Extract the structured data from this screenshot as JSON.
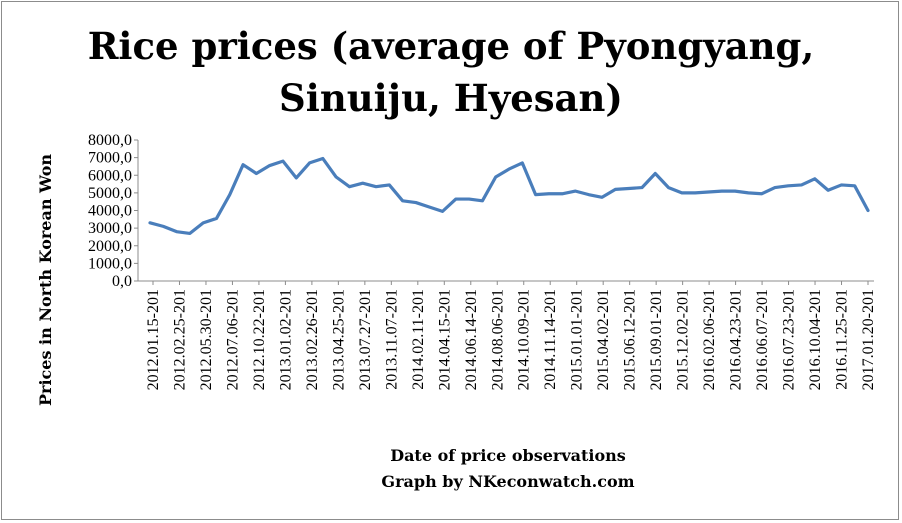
{
  "chart_data": {
    "type": "line",
    "title_line1": "Rice prices (average of Pyongyang,",
    "title_line2": "Sinuiju, Hyesan)",
    "ylabel": "Prices in North Korean Won",
    "xlabel": "Date of price observations",
    "credit": "Graph by NKeconwatch.com",
    "ylim": [
      0,
      8000
    ],
    "y_ticks": [
      "0,0",
      "1000,0",
      "2000,0",
      "3000,0",
      "4000,0",
      "5000,0",
      "6000,0",
      "7000,0",
      "8000,0"
    ],
    "x_tick_labels": [
      "2012.01.15-201",
      "2012.02.25-201",
      "2012.05.30-201",
      "2012.07.06-201",
      "2012.10.22-201",
      "2013.01.02-201",
      "2013.02.26-201",
      "2013.04.25-201",
      "2013.07.27-201",
      "2013.11.07-201",
      "2014.02.11-201",
      "2014.04.15-201",
      "2014.06.14-201",
      "2014.08.06-201",
      "2014.10.09-201",
      "2014.11.14-201",
      "2015.01.01-201",
      "2015.04.02-201",
      "2015.06.12-201",
      "2015.09.01-201",
      "2015.12.02-201",
      "2016.02.06-201",
      "2016.04.23-201",
      "2016.06.07-201",
      "2016.07.23-201",
      "2016.10.04-201",
      "2016.11.25-201",
      "2017.01.20-201"
    ],
    "grid": false,
    "legend": "none",
    "series_color": "#4a7ebb",
    "values": [
      3300,
      3100,
      2800,
      2700,
      3300,
      3550,
      4900,
      6600,
      6100,
      6550,
      6800,
      5850,
      6700,
      6950,
      5900,
      5350,
      5550,
      5350,
      5450,
      4550,
      4450,
      4200,
      3950,
      4650,
      4650,
      4550,
      5900,
      6350,
      6700,
      4900,
      4950,
      4950,
      5100,
      4900,
      4750,
      5200,
      5250,
      5300,
      6100,
      5300,
      5000,
      5000,
      5050,
      5100,
      5100,
      5000,
      4950,
      5300,
      5400,
      5450,
      5800,
      5150,
      5450,
      5400,
      4000
    ]
  }
}
